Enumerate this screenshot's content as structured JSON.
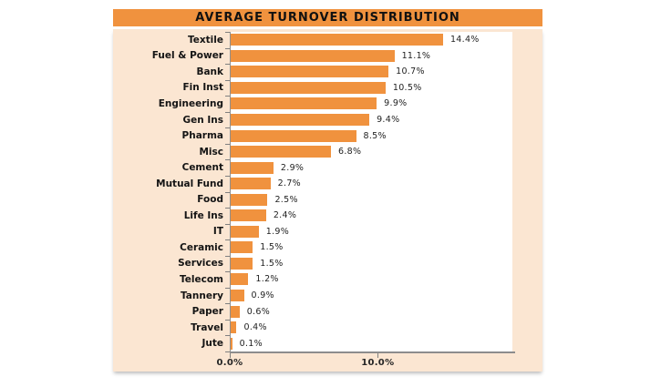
{
  "chart_data": {
    "type": "bar",
    "orientation": "horizontal",
    "title": "AVERAGE TURNOVER DISTRIBUTION",
    "categories": [
      "Textile",
      "Fuel & Power",
      "Bank",
      "Fin Inst",
      "Engineering",
      "Gen Ins",
      "Pharma",
      "Misc",
      "Cement",
      "Mutual Fund",
      "Food",
      "Life Ins",
      "IT",
      "Ceramic",
      "Services",
      "Telecom",
      "Tannery",
      "Paper",
      "Travel",
      "Jute"
    ],
    "values": [
      14.4,
      11.1,
      10.7,
      10.5,
      9.9,
      9.4,
      8.5,
      6.8,
      2.9,
      2.7,
      2.5,
      2.4,
      1.9,
      1.5,
      1.5,
      1.2,
      0.9,
      0.6,
      0.4,
      0.1
    ],
    "value_labels": [
      "14.4%",
      "11.1%",
      "10.7%",
      "10.5%",
      "9.9%",
      "9.4%",
      "8.5%",
      "6.8%",
      "2.9%",
      "2.7%",
      "2.5%",
      "2.4%",
      "1.9%",
      "1.5%",
      "1.5%",
      "1.2%",
      "0.9%",
      "0.6%",
      "0.4%",
      "0.1%"
    ],
    "xlabel": "",
    "ylabel": "",
    "xlim": [
      0,
      19.1
    ],
    "x_ticks": [
      {
        "value": 0,
        "label": "0.0%"
      },
      {
        "value": 10,
        "label": "10.0%"
      }
    ],
    "grid": false,
    "legend": false,
    "data_labels": true,
    "colors": {
      "bar": "#F0923E",
      "title_banner": "#F0923E",
      "chart_background": "#FBE6D2",
      "plot_background": "#FFFFFF",
      "axis_line": "#8C8C8C",
      "text": "#141414"
    }
  }
}
